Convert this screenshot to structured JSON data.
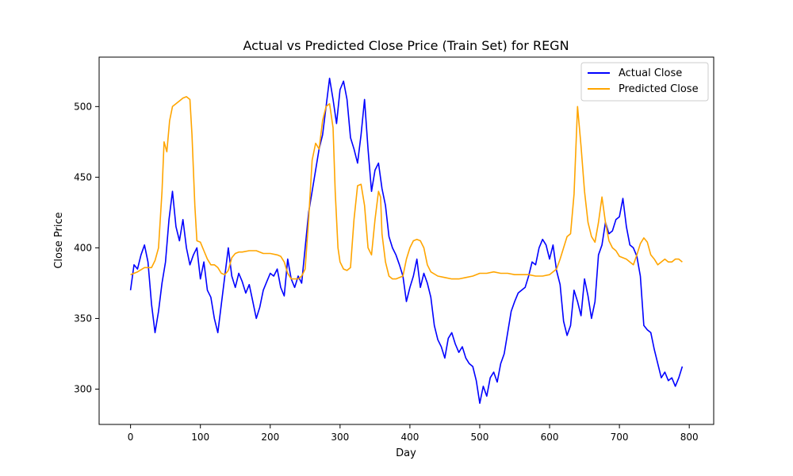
{
  "chart_data": {
    "type": "line",
    "title": "Actual vs Predicted Close Price (Train Set) for REGN",
    "xlabel": "Day",
    "ylabel": "Close Price",
    "xlim": [
      -45,
      835
    ],
    "ylim": [
      275,
      535
    ],
    "xticks": [
      0,
      100,
      200,
      300,
      400,
      500,
      600,
      700,
      800
    ],
    "yticks": [
      300,
      350,
      400,
      450,
      500
    ],
    "legend_position": "upper right",
    "series": [
      {
        "name": "Actual Close",
        "color": "#0000ff",
        "points": [
          [
            0,
            370
          ],
          [
            5,
            388
          ],
          [
            10,
            385
          ],
          [
            15,
            395
          ],
          [
            20,
            402
          ],
          [
            25,
            390
          ],
          [
            30,
            360
          ],
          [
            35,
            340
          ],
          [
            40,
            355
          ],
          [
            45,
            375
          ],
          [
            50,
            390
          ],
          [
            55,
            420
          ],
          [
            60,
            440
          ],
          [
            65,
            415
          ],
          [
            70,
            405
          ],
          [
            75,
            420
          ],
          [
            80,
            400
          ],
          [
            85,
            388
          ],
          [
            90,
            395
          ],
          [
            95,
            400
          ],
          [
            100,
            378
          ],
          [
            105,
            390
          ],
          [
            110,
            370
          ],
          [
            115,
            365
          ],
          [
            120,
            350
          ],
          [
            125,
            340
          ],
          [
            130,
            360
          ],
          [
            135,
            380
          ],
          [
            140,
            400
          ],
          [
            145,
            380
          ],
          [
            150,
            372
          ],
          [
            155,
            382
          ],
          [
            160,
            376
          ],
          [
            165,
            368
          ],
          [
            170,
            374
          ],
          [
            175,
            362
          ],
          [
            180,
            350
          ],
          [
            185,
            358
          ],
          [
            190,
            370
          ],
          [
            195,
            376
          ],
          [
            200,
            382
          ],
          [
            205,
            380
          ],
          [
            210,
            385
          ],
          [
            215,
            372
          ],
          [
            220,
            366
          ],
          [
            225,
            392
          ],
          [
            230,
            378
          ],
          [
            235,
            372
          ],
          [
            240,
            380
          ],
          [
            245,
            375
          ],
          [
            250,
            400
          ],
          [
            255,
            425
          ],
          [
            260,
            440
          ],
          [
            265,
            455
          ],
          [
            270,
            470
          ],
          [
            275,
            480
          ],
          [
            280,
            500
          ],
          [
            285,
            520
          ],
          [
            290,
            505
          ],
          [
            295,
            488
          ],
          [
            300,
            512
          ],
          [
            305,
            518
          ],
          [
            310,
            505
          ],
          [
            315,
            478
          ],
          [
            320,
            470
          ],
          [
            325,
            460
          ],
          [
            330,
            480
          ],
          [
            335,
            505
          ],
          [
            340,
            470
          ],
          [
            345,
            440
          ],
          [
            350,
            455
          ],
          [
            355,
            460
          ],
          [
            360,
            442
          ],
          [
            365,
            430
          ],
          [
            370,
            408
          ],
          [
            375,
            400
          ],
          [
            380,
            395
          ],
          [
            385,
            388
          ],
          [
            390,
            380
          ],
          [
            395,
            362
          ],
          [
            400,
            372
          ],
          [
            405,
            380
          ],
          [
            410,
            392
          ],
          [
            415,
            372
          ],
          [
            420,
            382
          ],
          [
            425,
            375
          ],
          [
            430,
            365
          ],
          [
            435,
            345
          ],
          [
            440,
            335
          ],
          [
            445,
            330
          ],
          [
            450,
            322
          ],
          [
            455,
            336
          ],
          [
            460,
            340
          ],
          [
            465,
            332
          ],
          [
            470,
            326
          ],
          [
            475,
            330
          ],
          [
            480,
            322
          ],
          [
            485,
            318
          ],
          [
            490,
            316
          ],
          [
            495,
            306
          ],
          [
            500,
            290
          ],
          [
            505,
            302
          ],
          [
            510,
            295
          ],
          [
            515,
            308
          ],
          [
            520,
            312
          ],
          [
            525,
            305
          ],
          [
            530,
            318
          ],
          [
            535,
            325
          ],
          [
            540,
            340
          ],
          [
            545,
            355
          ],
          [
            550,
            362
          ],
          [
            555,
            368
          ],
          [
            560,
            370
          ],
          [
            565,
            372
          ],
          [
            570,
            380
          ],
          [
            575,
            390
          ],
          [
            580,
            388
          ],
          [
            585,
            400
          ],
          [
            590,
            406
          ],
          [
            595,
            402
          ],
          [
            600,
            392
          ],
          [
            605,
            402
          ],
          [
            610,
            384
          ],
          [
            615,
            374
          ],
          [
            620,
            348
          ],
          [
            625,
            338
          ],
          [
            630,
            345
          ],
          [
            635,
            370
          ],
          [
            640,
            362
          ],
          [
            645,
            352
          ],
          [
            650,
            378
          ],
          [
            655,
            366
          ],
          [
            660,
            350
          ],
          [
            665,
            362
          ],
          [
            670,
            395
          ],
          [
            675,
            402
          ],
          [
            680,
            418
          ],
          [
            685,
            410
          ],
          [
            690,
            412
          ],
          [
            695,
            420
          ],
          [
            700,
            422
          ],
          [
            705,
            435
          ],
          [
            710,
            415
          ],
          [
            715,
            402
          ],
          [
            720,
            400
          ],
          [
            725,
            394
          ],
          [
            730,
            380
          ],
          [
            735,
            345
          ],
          [
            740,
            342
          ],
          [
            745,
            340
          ],
          [
            750,
            328
          ],
          [
            755,
            318
          ],
          [
            760,
            308
          ],
          [
            765,
            312
          ],
          [
            770,
            306
          ],
          [
            775,
            308
          ],
          [
            780,
            302
          ],
          [
            785,
            308
          ],
          [
            790,
            316
          ]
        ]
      },
      {
        "name": "Predicted Close",
        "color": "#ffa500",
        "points": [
          [
            0,
            381
          ],
          [
            10,
            383
          ],
          [
            20,
            386
          ],
          [
            30,
            386
          ],
          [
            35,
            391
          ],
          [
            40,
            400
          ],
          [
            45,
            440
          ],
          [
            48,
            475
          ],
          [
            52,
            468
          ],
          [
            56,
            490
          ],
          [
            60,
            500
          ],
          [
            65,
            502
          ],
          [
            70,
            504
          ],
          [
            75,
            506
          ],
          [
            80,
            507
          ],
          [
            85,
            505
          ],
          [
            88,
            480
          ],
          [
            92,
            430
          ],
          [
            95,
            405
          ],
          [
            100,
            404
          ],
          [
            105,
            398
          ],
          [
            110,
            392
          ],
          [
            115,
            388
          ],
          [
            120,
            388
          ],
          [
            125,
            386
          ],
          [
            130,
            382
          ],
          [
            135,
            381
          ],
          [
            140,
            384
          ],
          [
            145,
            393
          ],
          [
            150,
            396
          ],
          [
            155,
            397
          ],
          [
            160,
            397
          ],
          [
            170,
            398
          ],
          [
            180,
            398
          ],
          [
            190,
            396
          ],
          [
            200,
            396
          ],
          [
            210,
            395
          ],
          [
            215,
            394
          ],
          [
            220,
            390
          ],
          [
            225,
            382
          ],
          [
            230,
            378
          ],
          [
            235,
            378
          ],
          [
            240,
            378
          ],
          [
            245,
            380
          ],
          [
            250,
            385
          ],
          [
            255,
            420
          ],
          [
            260,
            462
          ],
          [
            265,
            474
          ],
          [
            270,
            470
          ],
          [
            275,
            490
          ],
          [
            280,
            500
          ],
          [
            285,
            502
          ],
          [
            290,
            485
          ],
          [
            293,
            440
          ],
          [
            297,
            400
          ],
          [
            300,
            390
          ],
          [
            305,
            385
          ],
          [
            310,
            384
          ],
          [
            315,
            386
          ],
          [
            320,
            420
          ],
          [
            325,
            444
          ],
          [
            330,
            445
          ],
          [
            335,
            430
          ],
          [
            340,
            400
          ],
          [
            345,
            395
          ],
          [
            350,
            420
          ],
          [
            355,
            440
          ],
          [
            358,
            436
          ],
          [
            360,
            410
          ],
          [
            365,
            390
          ],
          [
            370,
            380
          ],
          [
            375,
            378
          ],
          [
            380,
            378
          ],
          [
            390,
            380
          ],
          [
            395,
            392
          ],
          [
            400,
            400
          ],
          [
            405,
            405
          ],
          [
            410,
            406
          ],
          [
            415,
            405
          ],
          [
            420,
            400
          ],
          [
            425,
            388
          ],
          [
            430,
            383
          ],
          [
            440,
            380
          ],
          [
            450,
            379
          ],
          [
            460,
            378
          ],
          [
            470,
            378
          ],
          [
            480,
            379
          ],
          [
            490,
            380
          ],
          [
            500,
            382
          ],
          [
            510,
            382
          ],
          [
            520,
            383
          ],
          [
            530,
            382
          ],
          [
            540,
            382
          ],
          [
            550,
            381
          ],
          [
            560,
            381
          ],
          [
            570,
            381
          ],
          [
            580,
            380
          ],
          [
            590,
            380
          ],
          [
            600,
            381
          ],
          [
            610,
            385
          ],
          [
            615,
            392
          ],
          [
            620,
            400
          ],
          [
            625,
            408
          ],
          [
            630,
            410
          ],
          [
            635,
            438
          ],
          [
            640,
            500
          ],
          [
            645,
            472
          ],
          [
            650,
            440
          ],
          [
            655,
            418
          ],
          [
            660,
            408
          ],
          [
            665,
            404
          ],
          [
            670,
            418
          ],
          [
            675,
            436
          ],
          [
            680,
            418
          ],
          [
            685,
            405
          ],
          [
            690,
            400
          ],
          [
            695,
            398
          ],
          [
            700,
            394
          ],
          [
            705,
            393
          ],
          [
            710,
            392
          ],
          [
            715,
            390
          ],
          [
            720,
            388
          ],
          [
            725,
            395
          ],
          [
            730,
            403
          ],
          [
            735,
            407
          ],
          [
            740,
            404
          ],
          [
            745,
            395
          ],
          [
            750,
            392
          ],
          [
            755,
            388
          ],
          [
            760,
            390
          ],
          [
            765,
            392
          ],
          [
            770,
            390
          ],
          [
            775,
            390
          ],
          [
            780,
            392
          ],
          [
            785,
            392
          ],
          [
            790,
            390
          ]
        ]
      }
    ]
  }
}
